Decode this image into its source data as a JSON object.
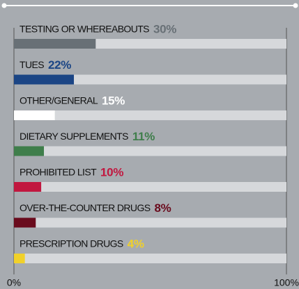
{
  "chart_data": {
    "type": "bar",
    "orientation": "horizontal",
    "categories": [
      "TESTING OR WHEREABOUTS",
      "TUES",
      "OTHER/GENERAL",
      "DIETARY SUPPLEMENTS",
      "PROHIBITED LIST",
      "OVER-THE-COUNTER DRUGS",
      "PRESCRIPTION DRUGS"
    ],
    "values": [
      30,
      22,
      15,
      11,
      10,
      8,
      4
    ],
    "value_labels": [
      "30%",
      "22%",
      "15%",
      "11%",
      "10%",
      "8%",
      "4%"
    ],
    "colors": [
      "#687076",
      "#1b4585",
      "#ffffff",
      "#3f7e4b",
      "#c1173f",
      "#6a0b1d",
      "#f1d12a"
    ],
    "xlim": [
      0,
      100
    ],
    "xticks": [
      {
        "value": 0,
        "label": "0%"
      },
      {
        "value": 100,
        "label": "100%"
      }
    ]
  }
}
